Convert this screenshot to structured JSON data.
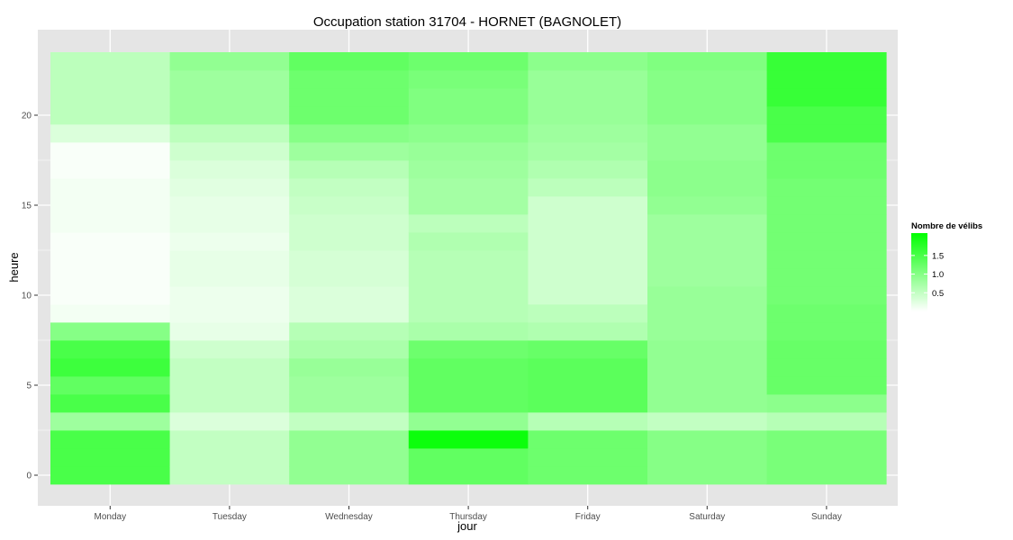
{
  "chart_data": {
    "type": "heatmap",
    "title": "Occupation station 31704 - HORNET (BAGNOLET)",
    "xlabel": "jour",
    "ylabel": "heure",
    "categories": [
      "Monday",
      "Tuesday",
      "Wednesday",
      "Thursday",
      "Friday",
      "Saturday",
      "Sunday"
    ],
    "y_ticks": [
      0,
      5,
      10,
      15,
      20
    ],
    "ylim": [
      -0.5,
      23.5
    ],
    "grid": true,
    "colors": {
      "low": "#ffffff",
      "high": "#00ff00",
      "panel": "#e5e5e5",
      "grid": "#ffffff"
    },
    "scale_range": [
      0,
      2.1
    ],
    "values": [
      [
        1.5,
        1.5,
        1.5,
        0.8,
        1.5,
        1.3,
        1.6,
        1.5,
        1.0,
        0.1,
        0.05,
        0.05,
        0.05,
        0.05,
        0.1,
        0.1,
        0.1,
        0.05,
        0.05,
        0.3,
        0.55,
        0.55,
        0.55,
        0.55
      ],
      [
        0.5,
        0.5,
        0.5,
        0.3,
        0.5,
        0.5,
        0.5,
        0.4,
        0.2,
        0.15,
        0.15,
        0.2,
        0.2,
        0.15,
        0.2,
        0.2,
        0.25,
        0.3,
        0.4,
        0.55,
        0.8,
        0.8,
        0.8,
        0.9
      ],
      [
        0.9,
        0.9,
        0.9,
        0.5,
        0.8,
        0.8,
        0.85,
        0.7,
        0.6,
        0.3,
        0.3,
        0.35,
        0.35,
        0.4,
        0.4,
        0.45,
        0.5,
        0.6,
        0.8,
        1.0,
        1.2,
        1.2,
        1.2,
        1.3
      ],
      [
        1.3,
        1.3,
        2.0,
        0.9,
        1.3,
        1.3,
        1.3,
        1.2,
        0.7,
        0.6,
        0.6,
        0.6,
        0.6,
        0.65,
        0.55,
        0.75,
        0.75,
        0.8,
        0.85,
        0.95,
        1.05,
        1.05,
        1.1,
        1.2
      ],
      [
        1.2,
        1.2,
        1.2,
        0.6,
        1.35,
        1.35,
        1.35,
        1.25,
        0.65,
        0.55,
        0.4,
        0.4,
        0.4,
        0.4,
        0.4,
        0.4,
        0.55,
        0.65,
        0.75,
        0.8,
        0.85,
        0.85,
        0.85,
        0.95
      ],
      [
        1.0,
        1.0,
        1.0,
        0.5,
        0.9,
        0.9,
        0.9,
        0.9,
        0.85,
        0.85,
        0.85,
        0.8,
        0.8,
        0.8,
        0.8,
        0.9,
        0.95,
        0.95,
        0.9,
        0.9,
        1.0,
        1.0,
        1.0,
        1.05
      ],
      [
        1.1,
        1.1,
        1.1,
        0.6,
        0.95,
        1.25,
        1.25,
        1.25,
        1.2,
        1.2,
        1.15,
        1.15,
        1.15,
        1.15,
        1.15,
        1.15,
        1.15,
        1.2,
        1.2,
        1.5,
        1.5,
        1.65,
        1.65,
        1.65
      ]
    ],
    "legend": {
      "title": "Nombre de vélibs",
      "position": "right",
      "ticks": [
        0.5,
        1.0,
        1.5
      ],
      "tick_labels": [
        "0.5",
        "1.0",
        "1.5"
      ]
    }
  }
}
